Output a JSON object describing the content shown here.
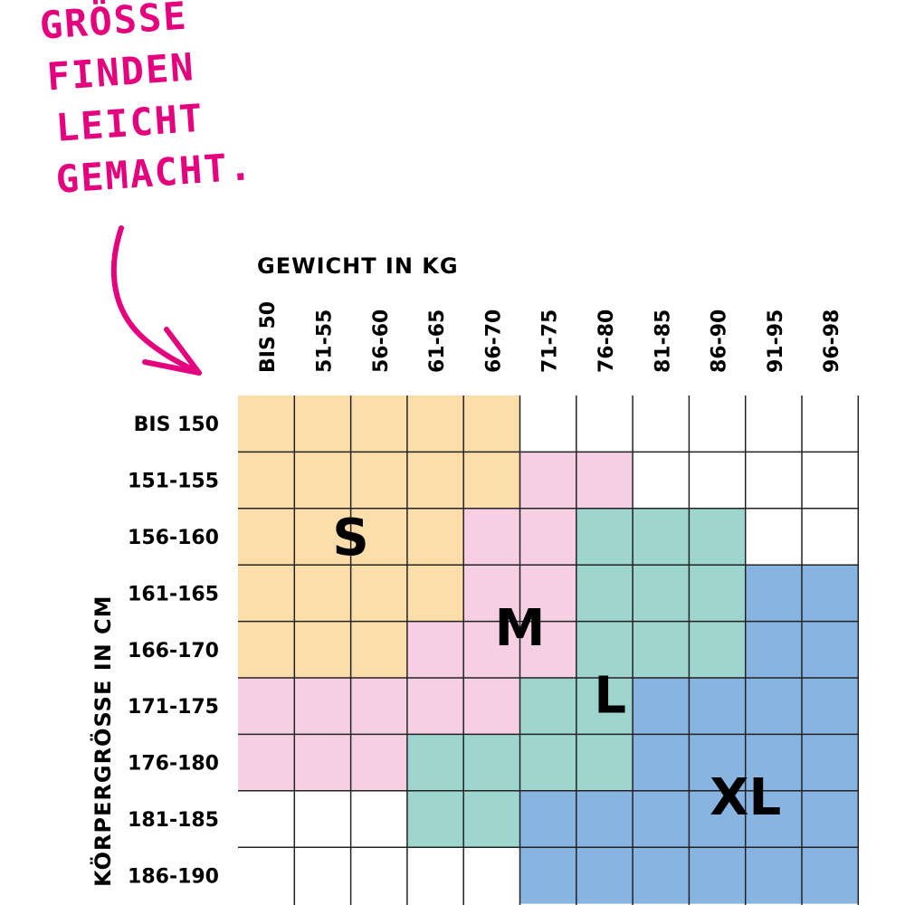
{
  "headline": [
    "GRÖSSE",
    "FINDEN",
    "LEICHT",
    "GEMACHT."
  ],
  "colors": {
    "accent": "#e5007e",
    "S": "#fddeaa",
    "M": "#f7cfe3",
    "L": "#9fd5cf",
    "XL": "#88b4e2",
    "none": "#ffffff",
    "grid": "#222222"
  },
  "icons": {
    "arrow": "hand-drawn-arrow-icon"
  },
  "chart_data": {
    "type": "heatmap",
    "xlabel": "GEWICHT IN KG",
    "ylabel": "KÖRPERGRÖSSE IN CM",
    "x_categories": [
      "BIS 50",
      "51-55",
      "56-60",
      "61-65",
      "66-70",
      "71-75",
      "76-80",
      "81-85",
      "86-90",
      "91-95",
      "96-98"
    ],
    "y_categories": [
      "BIS 150",
      "151-155",
      "156-160",
      "161-165",
      "166-170",
      "171-175",
      "176-180",
      "181-185",
      "186-190"
    ],
    "sizes": [
      "S",
      "M",
      "L",
      "XL"
    ],
    "cells": [
      [
        "S",
        "S",
        "S",
        "S",
        "S",
        "",
        "",
        "",
        "",
        "",
        ""
      ],
      [
        "S",
        "S",
        "S",
        "S",
        "S",
        "M",
        "M",
        "",
        "",
        "",
        ""
      ],
      [
        "S",
        "S",
        "S",
        "S",
        "M",
        "M",
        "L",
        "L",
        "L",
        "",
        ""
      ],
      [
        "S",
        "S",
        "S",
        "S",
        "M",
        "M",
        "L",
        "L",
        "L",
        "XL",
        "XL"
      ],
      [
        "S",
        "S",
        "S",
        "M",
        "M",
        "M",
        "L",
        "L",
        "L",
        "XL",
        "XL"
      ],
      [
        "M",
        "M",
        "M",
        "M",
        "M",
        "L",
        "L",
        "XL",
        "XL",
        "XL",
        "XL"
      ],
      [
        "M",
        "M",
        "M",
        "L",
        "L",
        "L",
        "L",
        "XL",
        "XL",
        "XL",
        "XL"
      ],
      [
        "",
        "",
        "",
        "L",
        "L",
        "XL",
        "XL",
        "XL",
        "XL",
        "XL",
        "XL"
      ],
      [
        "",
        "",
        "",
        "",
        "",
        "XL",
        "XL",
        "XL",
        "XL",
        "XL",
        "XL"
      ]
    ]
  }
}
